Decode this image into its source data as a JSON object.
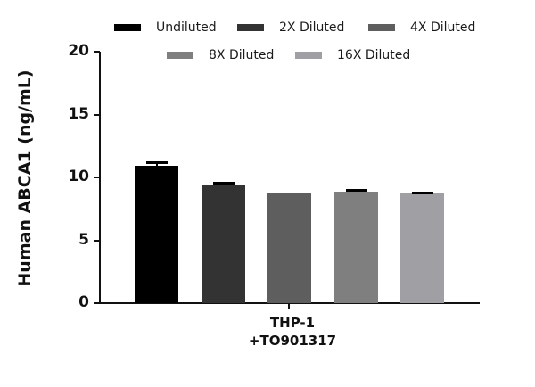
{
  "chart_data": {
    "type": "bar",
    "title": "",
    "xlabel": "THP-1 +TO901317",
    "ylabel": "Human ABCA1 (ng/mL)",
    "ylim": [
      0,
      20
    ],
    "yticks": [
      "0",
      "5",
      "10",
      "15",
      "20"
    ],
    "categories": [
      "THP-1\n+TO901317"
    ],
    "category_label_lines": [
      "THP-1",
      "+TO901317"
    ],
    "grid": false,
    "legend_position": "top",
    "series": [
      {
        "name": "Undiluted",
        "values": [
          10.9
        ],
        "error": [
          0.3
        ],
        "color": "#000000"
      },
      {
        "name": "2X Diluted",
        "values": [
          9.4
        ],
        "error": [
          0.15
        ],
        "color": "#333333"
      },
      {
        "name": "4X Diluted",
        "values": [
          8.7
        ],
        "error": [
          0.0
        ],
        "color": "#5e5e5e"
      },
      {
        "name": "8X Diluted",
        "values": [
          8.9
        ],
        "error": [
          0.1
        ],
        "color": "#7f7f7f"
      },
      {
        "name": "16X Diluted",
        "values": [
          8.7
        ],
        "error": [
          0.1
        ],
        "color": "#a0a0a4"
      }
    ]
  }
}
